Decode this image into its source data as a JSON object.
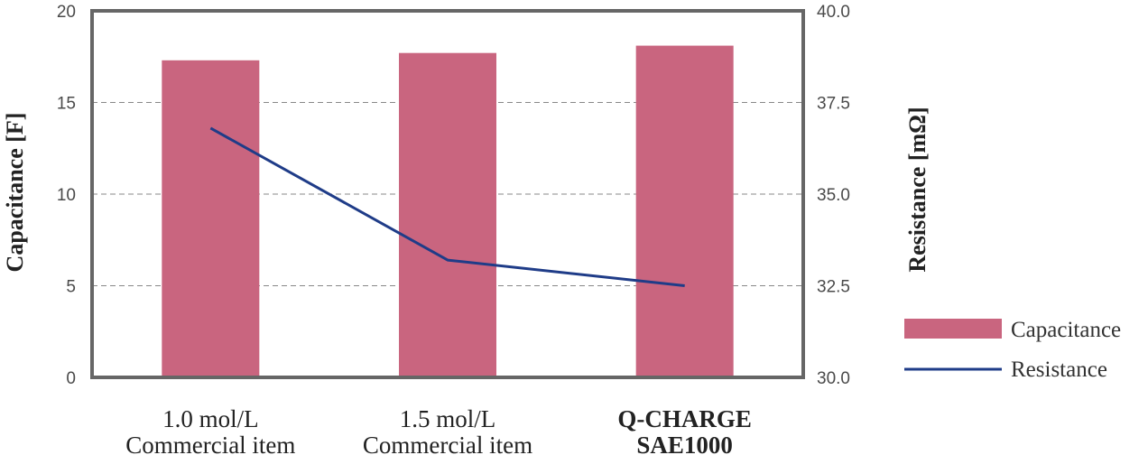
{
  "chart_data": {
    "type": "bar",
    "categories": [
      [
        "1.0 mol/L",
        "Commercial item"
      ],
      [
        "1.5 mol/L",
        "Commercial item"
      ],
      [
        "Q-CHARGE",
        "SAE1000"
      ]
    ],
    "category_bold": [
      false,
      false,
      true
    ],
    "series": [
      {
        "name": "Capacitance",
        "type": "bar",
        "axis": "left",
        "values": [
          17.3,
          17.7,
          18.1
        ]
      },
      {
        "name": "Resistance",
        "type": "line",
        "axis": "right",
        "values": [
          36.8,
          33.2,
          32.5
        ]
      }
    ],
    "ylabel": "Capacitance [F]",
    "ylabel_right": "Resistance [mΩ]",
    "ylim": [
      0,
      20
    ],
    "ylim_right": [
      30.0,
      40.0
    ],
    "yticks": [
      "0",
      "5",
      "10",
      "15",
      "20"
    ],
    "yticks_right": [
      "30.0",
      "32.5",
      "35.0",
      "37.5",
      "40.0"
    ],
    "grid": true,
    "legend_position": "right",
    "colors": {
      "bar": "#c9657f",
      "line": "#1f3c88",
      "frame": "#666666",
      "grid": "#888888"
    }
  }
}
